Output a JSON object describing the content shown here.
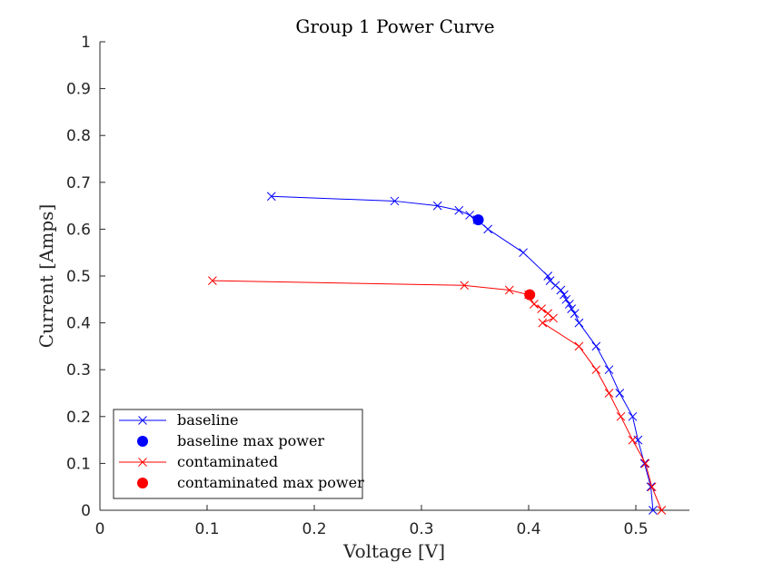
{
  "chart_data": {
    "type": "line",
    "title": "Group 1 Power Curve",
    "xlabel": "Voltage [V]",
    "ylabel": "Current [Amps]",
    "xlim": [
      0,
      0.55
    ],
    "ylim": [
      0,
      1
    ],
    "xticks": [
      "0",
      "0.1",
      "0.2",
      "0.3",
      "0.4",
      "0.5"
    ],
    "xtick_values": [
      0,
      0.1,
      0.2,
      0.3,
      0.4,
      0.5
    ],
    "yticks": [
      "0",
      "0.1",
      "0.2",
      "0.3",
      "0.4",
      "0.5",
      "0.6",
      "0.7",
      "0.8",
      "0.9",
      "1"
    ],
    "ytick_values": [
      0,
      0.1,
      0.2,
      0.3,
      0.4,
      0.5,
      0.6,
      0.7,
      0.8,
      0.9,
      1
    ],
    "grid": false,
    "legend_position": "bottom-left",
    "series": [
      {
        "name": "baseline",
        "color": "#0000ff",
        "marker": "x",
        "style": "line",
        "x": [
          0.16,
          0.275,
          0.315,
          0.335,
          0.345,
          0.352,
          0.362,
          0.395,
          0.418,
          0.42,
          0.425,
          0.43,
          0.433,
          0.435,
          0.438,
          0.44,
          0.443,
          0.447,
          0.463,
          0.475,
          0.485,
          0.497,
          0.502,
          0.508,
          0.514,
          0.516
        ],
        "y": [
          0.67,
          0.66,
          0.65,
          0.64,
          0.63,
          0.62,
          0.6,
          0.55,
          0.5,
          0.49,
          0.48,
          0.47,
          0.46,
          0.45,
          0.44,
          0.43,
          0.42,
          0.4,
          0.35,
          0.3,
          0.25,
          0.2,
          0.15,
          0.1,
          0.05,
          0.0
        ]
      },
      {
        "name": "baseline max power",
        "color": "#0000ff",
        "marker": "circle",
        "style": "point",
        "x": [
          0.353
        ],
        "y": [
          0.62
        ]
      },
      {
        "name": "contaminated",
        "color": "#ff0000",
        "marker": "x",
        "style": "line",
        "x": [
          0.105,
          0.34,
          0.382,
          0.4,
          0.405,
          0.412,
          0.418,
          0.423,
          0.413,
          0.447,
          0.463,
          0.475,
          0.486,
          0.497,
          0.509,
          0.515,
          0.524
        ],
        "y": [
          0.49,
          0.48,
          0.47,
          0.46,
          0.44,
          0.43,
          0.42,
          0.41,
          0.4,
          0.35,
          0.3,
          0.25,
          0.2,
          0.15,
          0.1,
          0.05,
          0.0
        ]
      },
      {
        "name": "contaminated max power",
        "color": "#ff0000",
        "marker": "circle",
        "style": "point",
        "x": [
          0.401
        ],
        "y": [
          0.46
        ]
      }
    ]
  }
}
